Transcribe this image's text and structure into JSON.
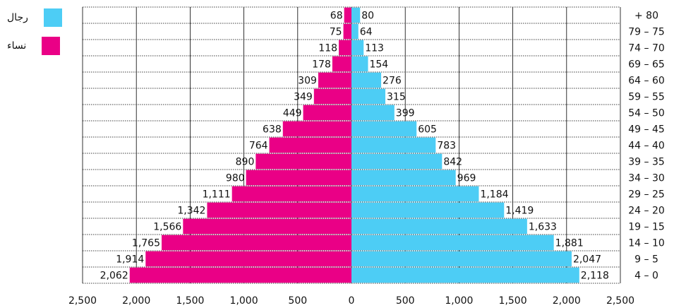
{
  "chart_data": {
    "type": "bar",
    "orientation": "horizontal-population-pyramid",
    "categories": [
      "4 – 0",
      "9 – 5",
      "14 – 10",
      "19 – 15",
      "24 – 20",
      "29 – 25",
      "34 – 30",
      "39 – 35",
      "44 – 40",
      "49 – 45",
      "54 – 50",
      "59 – 55",
      "64 – 60",
      "69 – 65",
      "74 – 70",
      "79 – 75",
      "+ 80"
    ],
    "series": [
      {
        "name": "رجال",
        "color": "#4dcdf5",
        "side": "right",
        "values": [
          2118,
          2047,
          1881,
          1633,
          1419,
          1184,
          969,
          842,
          783,
          605,
          399,
          315,
          276,
          154,
          113,
          64,
          80
        ]
      },
      {
        "name": "نساء",
        "color": "#ea0086",
        "side": "left",
        "values": [
          2062,
          1914,
          1765,
          1566,
          1342,
          1111,
          980,
          890,
          764,
          638,
          449,
          349,
          309,
          178,
          118,
          75,
          68
        ]
      }
    ],
    "xticks": [
      "2,500",
      "2,000",
      "1,500",
      "1,000",
      "500",
      "0",
      "500",
      "1,000",
      "1,500",
      "2,000",
      "2,500"
    ],
    "xlim": [
      -2500,
      2500
    ],
    "grid": true,
    "legend_position": "top-left"
  }
}
